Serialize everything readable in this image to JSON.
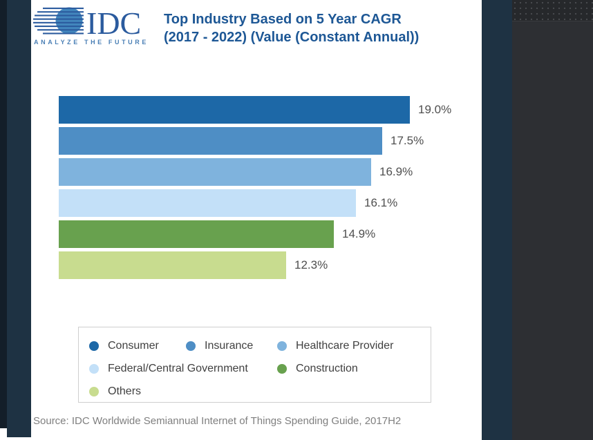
{
  "page": {
    "title_line1": "Top Industry Based on 5 Year CAGR",
    "title_line2": "(2017 - 2022) (Value (Constant Annual))",
    "source": "Source: IDC Worldwide Semiannual Internet of Things Spending Guide, 2017H2"
  },
  "logo": {
    "name": "IDC",
    "tagline": "ANALYZE THE FUTURE"
  },
  "colors": {
    "title_navy": "#1d5795",
    "logo_navy": "#2b5b9e",
    "logo_globe_blue": "#4286bd",
    "logo_tagline_blue": "#4a7fb5",
    "frame_navy": "#1e3243",
    "frame_gray": "#2d2f33",
    "value_label_gray": "#4f4f4f",
    "source_gray": "#7f7f7f"
  },
  "chart_data": {
    "type": "bar",
    "orientation": "horizontal",
    "title": "Top Industry Based on 5 Year CAGR (2017 - 2022) (Value (Constant Annual))",
    "categories": [
      "Consumer",
      "Insurance",
      "Healthcare Provider",
      "Federal/Central Government",
      "Construction",
      "Others"
    ],
    "values": [
      19.0,
      17.5,
      16.9,
      16.1,
      14.9,
      12.3
    ],
    "value_labels": [
      "19.0%",
      "17.5%",
      "16.9%",
      "16.1%",
      "14.9%",
      "12.3%"
    ],
    "colors": [
      "#1d68a7",
      "#4e8ec5",
      "#7fb3dd",
      "#c3e0f8",
      "#68a14e",
      "#c8dc8f"
    ],
    "xlabel": "",
    "ylabel": "",
    "xlim": [
      0,
      20
    ],
    "grid": false,
    "legend_position": "bottom",
    "data_labels": "outside-end"
  },
  "legend": {
    "rows": [
      [
        "Consumer",
        "Insurance",
        "Healthcare Provider"
      ],
      [
        "Federal/Central Government",
        "Construction"
      ],
      [
        "Others"
      ]
    ]
  }
}
